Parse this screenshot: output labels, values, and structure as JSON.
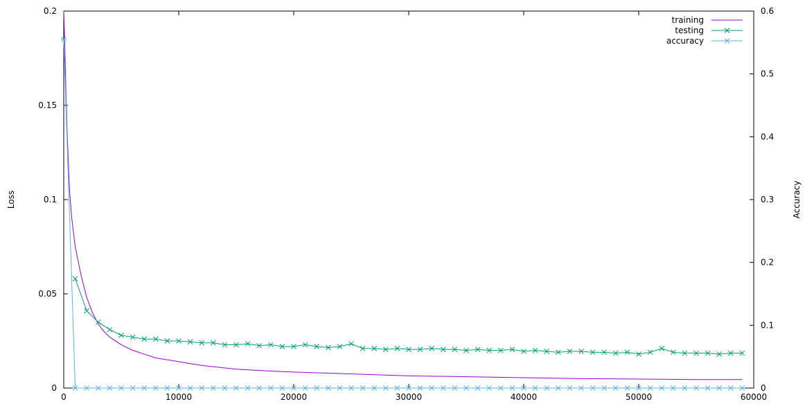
{
  "chart_data": {
    "type": "line",
    "xlabel": "",
    "ylabel": "Loss",
    "y2label": "Accuracy",
    "xlim": [
      0,
      60000
    ],
    "ylim": [
      0,
      0.2
    ],
    "y2lim": [
      0,
      0.6
    ],
    "x_ticks": [
      "0",
      "10000",
      "20000",
      "30000",
      "40000",
      "50000",
      "60000"
    ],
    "y_ticks": [
      "0",
      "0.05",
      "0.1",
      "0.15",
      "0.2"
    ],
    "y2_ticks": [
      "0",
      "0.1",
      "0.2",
      "0.3",
      "0.4",
      "0.5",
      "0.6"
    ],
    "legend_position": "top-right",
    "grid": false,
    "series": [
      {
        "name": "training",
        "axis": "left",
        "color": "#9400d3",
        "marker": "none",
        "x": [
          0,
          100,
          200,
          300,
          400,
          500,
          700,
          1000,
          1500,
          2000,
          2500,
          3000,
          3500,
          4000,
          5000,
          6000,
          7000,
          8000,
          10000,
          12000,
          15000,
          18000,
          20000,
          25000,
          30000,
          35000,
          40000,
          45000,
          50000,
          55000,
          59000
        ],
        "values": [
          0.2,
          0.18,
          0.155,
          0.135,
          0.12,
          0.105,
          0.09,
          0.075,
          0.06,
          0.048,
          0.04,
          0.034,
          0.03,
          0.027,
          0.023,
          0.02,
          0.018,
          0.016,
          0.014,
          0.012,
          0.01,
          0.009,
          0.0085,
          0.0075,
          0.0065,
          0.006,
          0.0055,
          0.005,
          0.0048,
          0.0045,
          0.0045
        ]
      },
      {
        "name": "testing",
        "axis": "left",
        "color": "#009e73",
        "marker": "x",
        "x": [
          1000,
          2000,
          3000,
          4000,
          5000,
          6000,
          7000,
          8000,
          9000,
          10000,
          11000,
          12000,
          13000,
          14000,
          15000,
          16000,
          17000,
          18000,
          19000,
          20000,
          21000,
          22000,
          23000,
          24000,
          25000,
          26000,
          27000,
          28000,
          29000,
          30000,
          31000,
          32000,
          33000,
          34000,
          35000,
          36000,
          37000,
          38000,
          39000,
          40000,
          41000,
          42000,
          43000,
          44000,
          45000,
          46000,
          47000,
          48000,
          49000,
          50000,
          51000,
          52000,
          53000,
          54000,
          55000,
          56000,
          57000,
          58000,
          59000
        ],
        "values": [
          0.058,
          0.041,
          0.035,
          0.031,
          0.028,
          0.027,
          0.026,
          0.026,
          0.025,
          0.025,
          0.0245,
          0.024,
          0.024,
          0.023,
          0.023,
          0.0235,
          0.0225,
          0.023,
          0.022,
          0.022,
          0.023,
          0.022,
          0.0215,
          0.022,
          0.0235,
          0.021,
          0.021,
          0.0205,
          0.021,
          0.0205,
          0.0205,
          0.021,
          0.0205,
          0.0205,
          0.02,
          0.0205,
          0.02,
          0.02,
          0.0205,
          0.0195,
          0.02,
          0.0195,
          0.019,
          0.0195,
          0.0195,
          0.019,
          0.019,
          0.0185,
          0.019,
          0.018,
          0.019,
          0.021,
          0.019,
          0.0185,
          0.0185,
          0.0185,
          0.018,
          0.0185,
          0.0185
        ]
      },
      {
        "name": "accuracy",
        "axis": "right",
        "color": "#56b4e9",
        "marker": "*",
        "x": [
          0,
          1000,
          2000,
          3000,
          4000,
          5000,
          6000,
          7000,
          8000,
          9000,
          10000,
          11000,
          12000,
          13000,
          14000,
          15000,
          16000,
          17000,
          18000,
          19000,
          20000,
          21000,
          22000,
          23000,
          24000,
          25000,
          26000,
          27000,
          28000,
          29000,
          30000,
          31000,
          32000,
          33000,
          34000,
          35000,
          36000,
          37000,
          38000,
          39000,
          40000,
          41000,
          42000,
          43000,
          44000,
          45000,
          46000,
          47000,
          48000,
          49000,
          50000,
          51000,
          52000,
          53000,
          54000,
          55000,
          56000,
          57000,
          58000,
          59000
        ],
        "values": [
          0.555,
          0,
          0,
          0,
          0,
          0,
          0,
          0,
          0,
          0,
          0,
          0,
          0,
          0,
          0,
          0,
          0,
          0,
          0,
          0,
          0,
          0,
          0,
          0,
          0,
          0,
          0,
          0,
          0,
          0,
          0,
          0,
          0,
          0,
          0,
          0,
          0,
          0,
          0,
          0,
          0,
          0,
          0,
          0,
          0,
          0,
          0,
          0,
          0,
          0,
          0,
          0,
          0,
          0,
          0,
          0,
          0,
          0,
          0,
          0
        ]
      }
    ]
  }
}
